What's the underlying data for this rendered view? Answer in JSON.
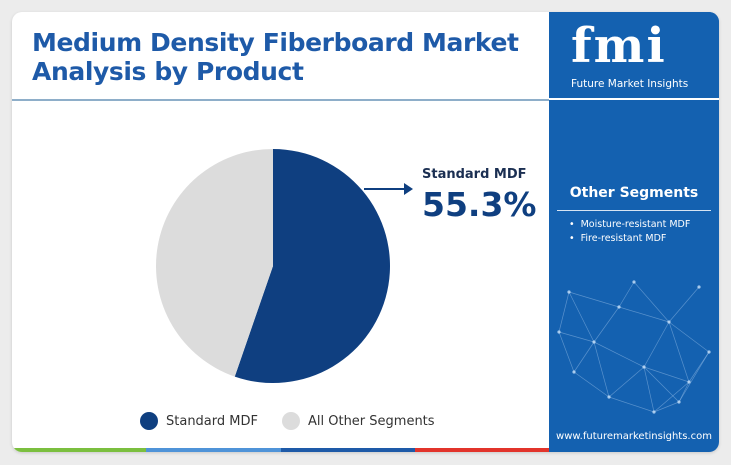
{
  "title": "Medium Density Fiberboard Market Analysis by Product",
  "callout": {
    "label": "Standard MDF",
    "value": "55.3%"
  },
  "legend": [
    {
      "label": "Standard MDF",
      "color": "#0f3f80"
    },
    {
      "label": "All Other Segments",
      "color": "#dcdcdc"
    }
  ],
  "sidebar": {
    "logo_text": "fmi",
    "logo_subtitle": "Future Market Insights",
    "other_segments_title": "Other Segments",
    "other_segments": [
      "Moisture-resistant MDF",
      "Fire-resistant MDF"
    ],
    "website": "www.futuremarketinsights.com"
  },
  "colors": {
    "title": "#1e5aa8",
    "sidebar": "#1461b0",
    "bottom_bar": [
      "#7bbf3f",
      "#4f93d8",
      "#1e5aa8",
      "#e2342b"
    ]
  },
  "chart_data": {
    "type": "pie",
    "categories": [
      "Standard MDF",
      "All Other Segments"
    ],
    "values": [
      55.3,
      44.7
    ],
    "title": "Medium Density Fiberboard Market Analysis by Product"
  }
}
